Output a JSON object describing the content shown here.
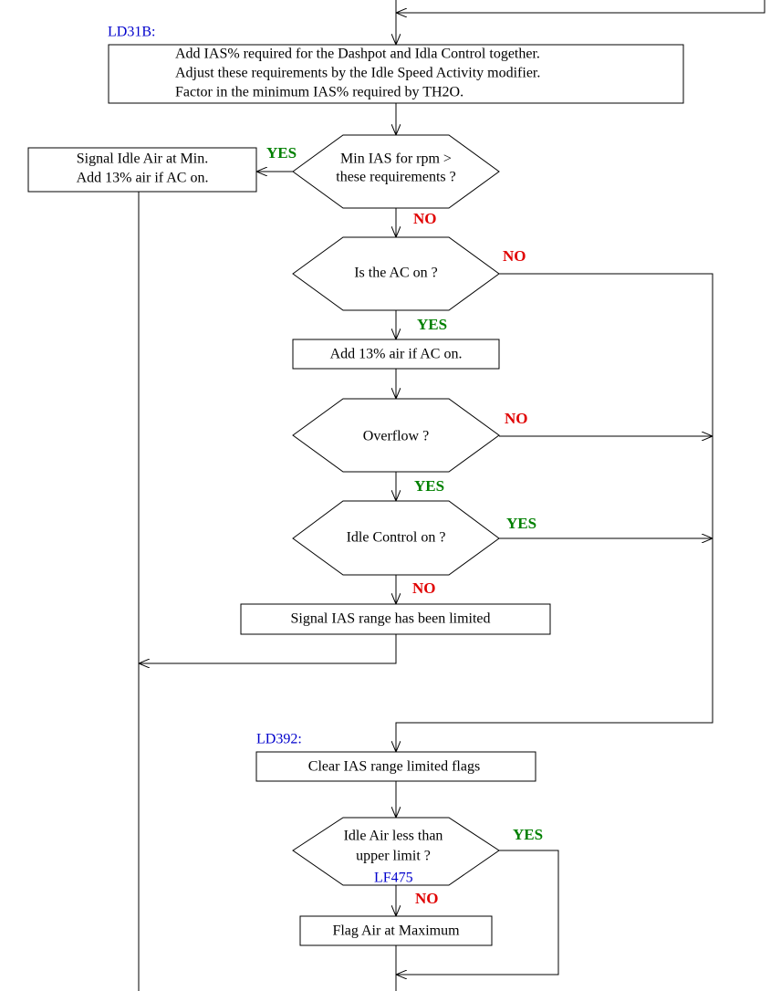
{
  "labels": [
    "LD31B:",
    "LD392:",
    "LF475"
  ],
  "nodes": [
    {
      "lines": [
        "Add IAS% required for the Dashpot and Idla Control together.",
        "Adjust these requirements by the Idle Speed Activity modifier.",
        "Factor in the minimum IAS% required by TH2O."
      ]
    },
    {
      "lines": [
        "Min IAS for rpm >",
        "these requirements ?"
      ]
    },
    {
      "lines": [
        "Signal Idle Air at Min.",
        "Add 13% air if AC on."
      ]
    },
    {
      "lines": [
        "Is the AC on ?"
      ]
    },
    {
      "lines": [
        "Add 13% air if AC on."
      ]
    },
    {
      "lines": [
        "Overflow ?"
      ]
    },
    {
      "lines": [
        "Idle Control on ?"
      ]
    },
    {
      "lines": [
        "Signal IAS range has been limited"
      ]
    },
    {
      "lines": [
        "Clear IAS range limited flags"
      ]
    },
    {
      "lines": [
        "Idle Air less than",
        "upper limit ?"
      ]
    },
    {
      "lines": [
        "Flag Air at Maximum"
      ]
    }
  ],
  "edge_labels": [
    "YES",
    "NO",
    "NO",
    "YES",
    "NO",
    "YES",
    "YES",
    "NO",
    "YES",
    "NO"
  ]
}
